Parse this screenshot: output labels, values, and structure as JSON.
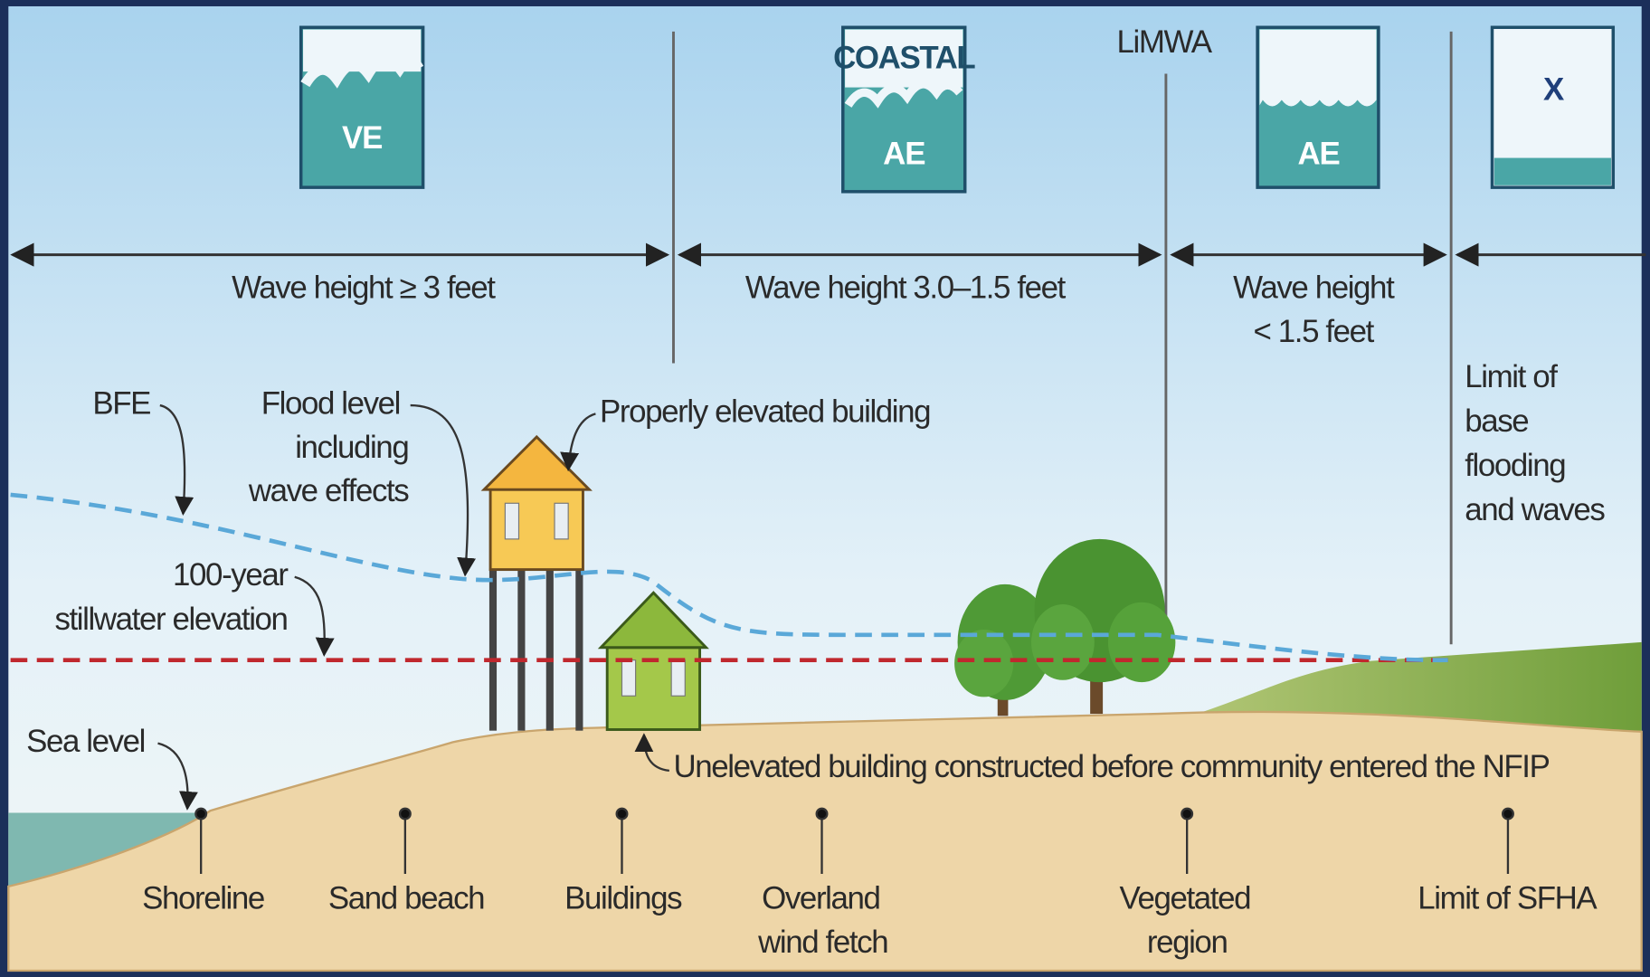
{
  "zones": [
    {
      "label": "VE"
    },
    {
      "badge": "COASTAL",
      "label": "AE"
    },
    {
      "label": "AE"
    },
    {
      "label": "X"
    }
  ],
  "limwa": "LiMWA",
  "ranges": [
    {
      "lines": [
        "Wave height ≥ 3 feet"
      ]
    },
    {
      "lines": [
        "Wave height 3.0–1.5 feet"
      ]
    },
    {
      "lines": [
        "Wave height",
        "< 1.5 feet"
      ]
    },
    {
      "lines": [
        "Limit of",
        "base",
        "flooding",
        "and waves"
      ]
    }
  ],
  "callouts": {
    "bfe": "BFE",
    "flood_level": [
      "Flood level",
      "including",
      "wave effects"
    ],
    "elevated": "Properly elevated building",
    "stillwater": [
      "100-year",
      "stillwater elevation"
    ],
    "sea_level": "Sea level",
    "unelevated": "Unelevated building constructed before community entered the NFIP"
  },
  "ground_labels": [
    {
      "lines": [
        "Shoreline"
      ]
    },
    {
      "lines": [
        "Sand beach"
      ]
    },
    {
      "lines": [
        "Buildings"
      ]
    },
    {
      "lines": [
        "Overland",
        "wind fetch"
      ]
    },
    {
      "lines": [
        "Vegetated",
        "region"
      ]
    },
    {
      "lines": [
        "Limit of SFHA"
      ]
    }
  ]
}
